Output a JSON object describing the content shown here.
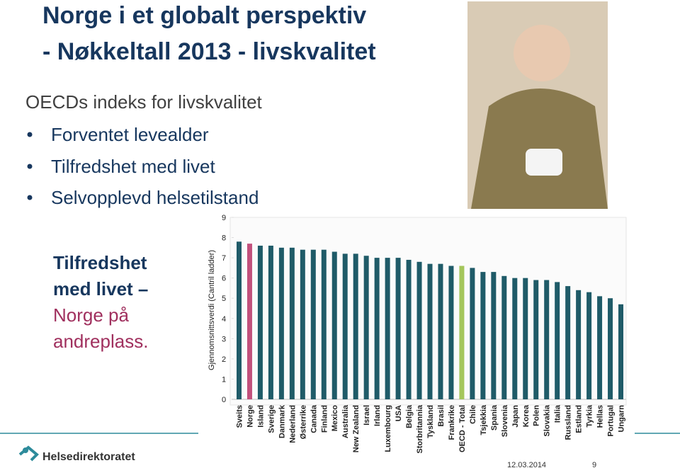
{
  "slide": {
    "title": [
      "Norge i et globalt perspektiv",
      "- Nøkkeltall 2013 - livskvalitet"
    ],
    "subtitle": "OECDs indeks for livskvalitet",
    "bullets": [
      "Forventet levealder",
      "Tilfredshet med livet",
      "Selvopplevd helsetilstand"
    ],
    "callout": {
      "bold": [
        "Tilfredshet",
        "med livet –"
      ],
      "highlight": [
        "Norge på",
        "andreplass."
      ]
    },
    "logo": "Helsedirektoratet",
    "date": "12.03.2014",
    "page": "9"
  },
  "chart_data": {
    "type": "bar",
    "y_label": "Gjennomsnittsverdi (Cantril ladder)",
    "categories": [
      "Sveits",
      "Norge",
      "Island",
      "Sverige",
      "Danmark",
      "Nederland",
      "Østerrike",
      "Canada",
      "Finland",
      "Mexico",
      "Australia",
      "New Zealand",
      "Israel",
      "Irland",
      "Luxembourg",
      "USA",
      "Belgia",
      "Storbritannia",
      "Tyskland",
      "Brasil",
      "Frankrike",
      "OECD - Total",
      "Chile",
      "Tsjekkia",
      "Spania",
      "Slovenia",
      "Japan",
      "Korea",
      "Polen",
      "Slovakia",
      "Italia",
      "Russland",
      "Estland",
      "Tyrkia",
      "Hellas",
      "Portugal",
      "Ungarn"
    ],
    "values": [
      7.8,
      7.7,
      7.6,
      7.6,
      7.5,
      7.5,
      7.4,
      7.4,
      7.4,
      7.3,
      7.2,
      7.2,
      7.1,
      7.0,
      7.0,
      7.0,
      6.9,
      6.8,
      6.7,
      6.7,
      6.6,
      6.6,
      6.5,
      6.3,
      6.3,
      6.1,
      6.0,
      6.0,
      5.9,
      5.9,
      5.8,
      5.6,
      5.4,
      5.3,
      5.1,
      5.0,
      4.7
    ],
    "colors": [
      "#1f5b68",
      "#c2507c",
      "#1f5b68",
      "#1f5b68",
      "#1f5b68",
      "#1f5b68",
      "#1f5b68",
      "#1f5b68",
      "#1f5b68",
      "#1f5b68",
      "#1f5b68",
      "#1f5b68",
      "#1f5b68",
      "#1f5b68",
      "#1f5b68",
      "#1f5b68",
      "#1f5b68",
      "#1f5b68",
      "#1f5b68",
      "#1f5b68",
      "#1f5b68",
      "#a4c65b",
      "#1f5b68",
      "#1f5b68",
      "#1f5b68",
      "#1f5b68",
      "#1f5b68",
      "#1f5b68",
      "#1f5b68",
      "#1f5b68",
      "#1f5b68",
      "#1f5b68",
      "#1f5b68",
      "#1f5b68",
      "#1f5b68",
      "#1f5b68",
      "#1f5b68"
    ],
    "ylim": [
      0,
      9
    ],
    "yticks": [
      0,
      1,
      2,
      3,
      4,
      5,
      6,
      7,
      8,
      9
    ]
  }
}
